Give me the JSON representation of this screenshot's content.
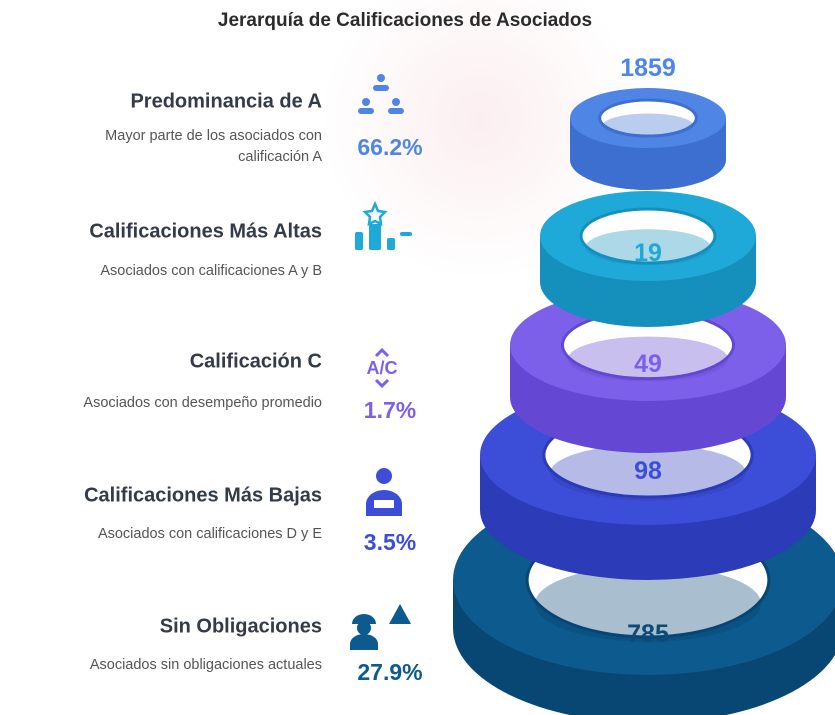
{
  "header": {
    "title": "Jerarquía de Calificaciones de Asociados"
  },
  "levels": [
    {
      "label": "Predominancia de A",
      "description": "Mayor parte de los asociados con calificación A",
      "percent": "66.2%",
      "count": "1859"
    },
    {
      "label": "Calificaciones Más Altas",
      "description": "Asociados con calificaciones A y B",
      "count": "19"
    },
    {
      "label": "Calificación C",
      "description": "Asociados con desempeño promedio",
      "percent": "1.7%",
      "count": "49"
    },
    {
      "label": "Calificaciones Más Bajas",
      "description": "Asociados con calificaciones D y E",
      "percent": "3.5%",
      "count": "98"
    },
    {
      "label": "Sin Obligaciones",
      "description": "Asociados sin obligaciones actuales",
      "percent": "27.9%",
      "count": "785"
    }
  ]
}
